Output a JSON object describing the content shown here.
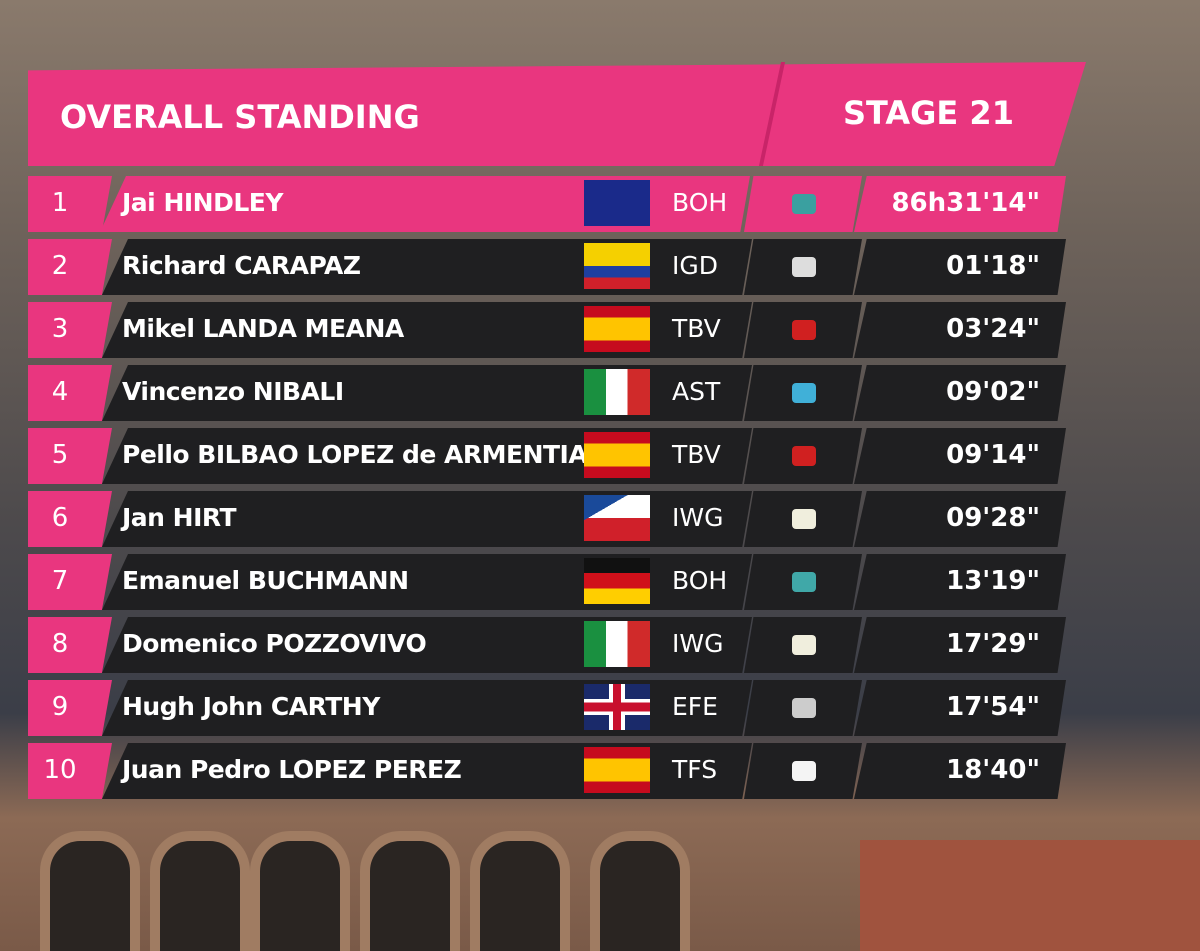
{
  "header": {
    "title": "OVERALL STANDING",
    "stage": "STAGE 21"
  },
  "table": {
    "rows": [
      {
        "rank": 1,
        "name": "Jai HINDLEY",
        "team": "BOH",
        "time": "86h31'14\""
      },
      {
        "rank": 2,
        "name": "Richard CARAPAZ",
        "team": "IGD",
        "time": "01'18\""
      },
      {
        "rank": 3,
        "name": "Mikel LANDA MEANA",
        "team": "TBV",
        "time": "03'24\""
      },
      {
        "rank": 4,
        "name": "Vincenzo NIBALI",
        "team": "AST",
        "time": "09'02\""
      },
      {
        "rank": 5,
        "name": "Pello BILBAO LOPEZ de ARMENTIA",
        "team": "TBV",
        "time": "09'14\""
      },
      {
        "rank": 6,
        "name": "Jan HIRT",
        "team": "IWG",
        "time": "09'28\""
      },
      {
        "rank": 7,
        "name": "Emanuel BUCHMANN",
        "team": "BOH",
        "time": "13'19\""
      },
      {
        "rank": 8,
        "name": "Domenico POZZOVIVO",
        "team": "IWG",
        "time": "17'29\""
      },
      {
        "rank": 9,
        "name": "Hugh John CARTHY",
        "team": "EFE",
        "time": "17'54\""
      },
      {
        "rank": 10,
        "name": "Juan Pedro LOPEZ PEREZ",
        "team": "TFS",
        "time": "18'40\""
      }
    ]
  }
}
